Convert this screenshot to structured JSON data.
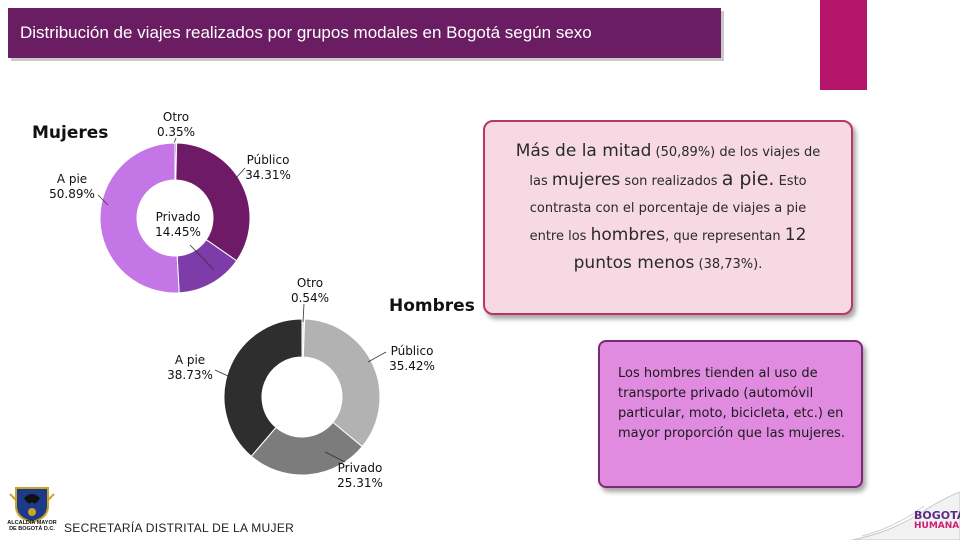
{
  "header": {
    "title": "Distribución de viajes realizados por grupos modales en Bogotá según sexo"
  },
  "groups": {
    "women_label": "Mujeres",
    "men_label": "Hombres"
  },
  "chart_data": [
    {
      "type": "pie",
      "donut": true,
      "group": "Mujeres",
      "slices": [
        {
          "label": "Otro",
          "value": 0.35,
          "value_text": "0.35%",
          "color": "#8a8a8a"
        },
        {
          "label": "Público",
          "value": 34.31,
          "value_text": "34.31%",
          "color": "#6e1a66"
        },
        {
          "label": "Privado",
          "value": 14.45,
          "value_text": "14.45%",
          "color": "#7e3ca8"
        },
        {
          "label": "A pie",
          "value": 50.89,
          "value_text": "50.89%",
          "color": "#c576e6"
        }
      ]
    },
    {
      "type": "pie",
      "donut": true,
      "group": "Hombres",
      "slices": [
        {
          "label": "Otro",
          "value": 0.54,
          "value_text": "0.54%",
          "color": "#e6e6e6"
        },
        {
          "label": "Público",
          "value": 35.42,
          "value_text": "35.42%",
          "color": "#b2b2b2"
        },
        {
          "label": "Privado",
          "value": 25.31,
          "value_text": "25.31%",
          "color": "#7c7c7c"
        },
        {
          "label": "A pie",
          "value": 38.73,
          "value_text": "38.73%",
          "color": "#2e2e2e"
        }
      ]
    }
  ],
  "women_box": {
    "p1": "Más de la mitad",
    "p2": " (50,89%) de los viajes de las ",
    "p3": "mujeres",
    "p4": " son realizados ",
    "p5": "a pie.",
    "p6": " Esto contrasta con el porcentaje de viajes a pie entre los ",
    "p7": "hombres",
    "p8": ", que representan ",
    "p9": "12 puntos menos",
    "p10": " (38,73%)."
  },
  "men_box": {
    "text": "Los hombres tienden al uso de transporte privado (automóvil particular, moto, bicicleta, etc.) en mayor proporción que las mujeres."
  },
  "footer": {
    "org": "SECRETARÍA DISTRITAL DE LA MUJER",
    "crest_caption": "ALCALDÍA MAYOR DE BOGOTÁ D.C.",
    "logo_top": "BOGOTÁ",
    "logo_bottom": "HUMANA"
  },
  "colors": {
    "title_bg": "#6b1d63",
    "accent": "#b5166b",
    "women_box_bg": "#f7d9e4",
    "men_box_bg": "#e08ae0"
  }
}
